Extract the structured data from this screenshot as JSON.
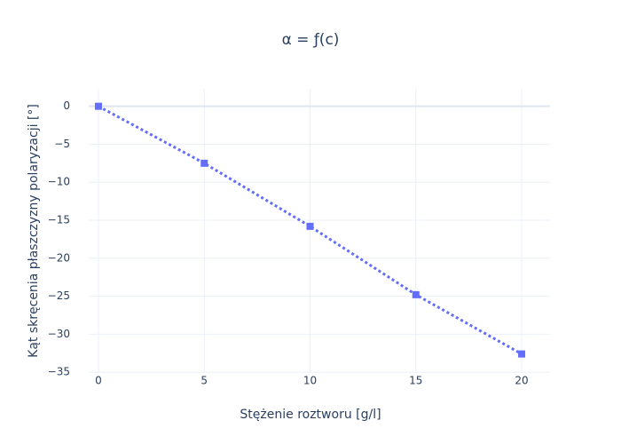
{
  "chart_data": {
    "type": "line",
    "title": "α = ƒ(c)",
    "x_label": "Stężenie roztworu [g/l]",
    "y_label": "Kąt skręcenia płaszczyzny polaryzacji [°]",
    "x": [
      0,
      5,
      10,
      15,
      20
    ],
    "series": [
      {
        "color": "#636efa",
        "values": [
          0,
          -7.5,
          -15.8,
          -24.8,
          -32.6
        ]
      }
    ],
    "xlim": [
      -0.46,
      21.34
    ],
    "ylim": [
      -35.1,
      2.3
    ],
    "xticks": [
      0,
      5,
      10,
      15,
      20
    ],
    "yticks": [
      0,
      {
        "value": -5,
        "label": "−5"
      },
      {
        "value": -10,
        "label": "−10"
      },
      {
        "value": -15,
        "label": "−15"
      },
      {
        "value": -20,
        "label": "−20"
      },
      {
        "value": -25,
        "label": "−25"
      },
      {
        "value": -30,
        "label": "−30"
      },
      {
        "value": -35,
        "label": "−35"
      }
    ],
    "grid": true
  }
}
